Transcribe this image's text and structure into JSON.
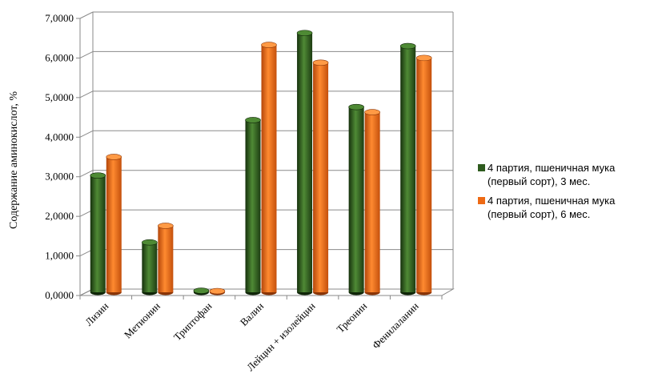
{
  "chart_data": {
    "type": "bar",
    "title": "",
    "xlabel": "",
    "ylabel": "Содержание аминокислот, %",
    "ylim": [
      0,
      7
    ],
    "yticks": [
      "0,0000",
      "1,0000",
      "2,0000",
      "3,0000",
      "4,0000",
      "5,0000",
      "6,0000",
      "7,0000"
    ],
    "grid": true,
    "legend_position": "right",
    "categories": [
      "Лизин",
      "Метионин",
      "Триптофан",
      "Валин",
      "Лейцин + изолейцин",
      "Треонин",
      "Фенилаланин"
    ],
    "series": [
      {
        "name_lines": [
          "4 партия, пшеничная мука",
          "(первый сорт), 3 мес."
        ],
        "color": "#2e5b1e",
        "values": [
          2.95,
          1.26,
          0.04,
          4.35,
          6.55,
          4.68,
          6.22
        ]
      },
      {
        "name_lines": [
          "4 партия, пшеничная мука",
          "(первый сорт), 6 мес."
        ],
        "color": "#ee6a14",
        "values": [
          3.42,
          1.68,
          0.03,
          6.25,
          5.8,
          4.55,
          5.92
        ]
      }
    ]
  }
}
